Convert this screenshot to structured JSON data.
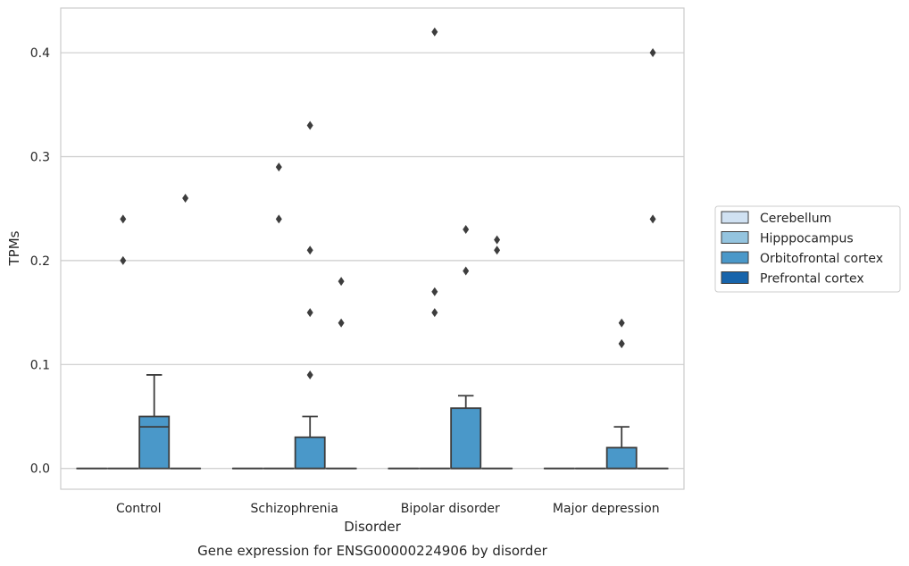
{
  "chart_data": {
    "type": "box",
    "title": "",
    "caption": "Gene expression for ENSG00000224906 by disorder",
    "xlabel": "Disorder",
    "ylabel": "TPMs",
    "categories": [
      "Control",
      "Schizophrenia",
      "Bipolar disorder",
      "Major depression"
    ],
    "ylim": [
      -0.02,
      0.443
    ],
    "yticks": [
      "0.0",
      "0.1",
      "0.2",
      "0.3",
      "0.4"
    ],
    "ytick_values": [
      0.0,
      0.1,
      0.2,
      0.3,
      0.4
    ],
    "grid": "horizontal",
    "legend_position": "right",
    "series": [
      {
        "name": "Cerebellum",
        "color": "#d0e1f2",
        "boxes": [
          {
            "q1": 0,
            "median": 0,
            "q3": 0,
            "whisker_low": 0,
            "whisker_high": 0,
            "outliers": []
          },
          {
            "q1": 0,
            "median": 0,
            "q3": 0,
            "whisker_low": 0,
            "whisker_high": 0,
            "outliers": []
          },
          {
            "q1": 0,
            "median": 0,
            "q3": 0,
            "whisker_low": 0,
            "whisker_high": 0,
            "outliers": []
          },
          {
            "q1": 0,
            "median": 0,
            "q3": 0,
            "whisker_low": 0,
            "whisker_high": 0,
            "outliers": []
          }
        ]
      },
      {
        "name": "Hipppocampus",
        "color": "#94c4df",
        "boxes": [
          {
            "q1": 0,
            "median": 0,
            "q3": 0,
            "whisker_low": 0,
            "whisker_high": 0,
            "outliers": [
              0.2,
              0.24
            ]
          },
          {
            "q1": 0,
            "median": 0,
            "q3": 0,
            "whisker_low": 0,
            "whisker_high": 0,
            "outliers": [
              0.24,
              0.29
            ]
          },
          {
            "q1": 0,
            "median": 0,
            "q3": 0,
            "whisker_low": 0,
            "whisker_high": 0,
            "outliers": [
              0.15,
              0.17,
              0.42
            ]
          },
          {
            "q1": 0,
            "median": 0,
            "q3": 0,
            "whisker_low": 0,
            "whisker_high": 0,
            "outliers": []
          }
        ]
      },
      {
        "name": "Orbitofrontal cortex",
        "color": "#4a98c9",
        "boxes": [
          {
            "q1": 0,
            "median": 0.04,
            "q3": 0.05,
            "whisker_low": 0,
            "whisker_high": 0.09,
            "outliers": []
          },
          {
            "q1": 0,
            "median": 0,
            "q3": 0.03,
            "whisker_low": 0,
            "whisker_high": 0.05,
            "outliers": [
              0.09,
              0.15,
              0.21,
              0.33
            ]
          },
          {
            "q1": 0,
            "median": 0,
            "q3": 0.058,
            "whisker_low": 0,
            "whisker_high": 0.07,
            "outliers": [
              0.19,
              0.23
            ]
          },
          {
            "q1": 0,
            "median": 0,
            "q3": 0.02,
            "whisker_low": 0,
            "whisker_high": 0.04,
            "outliers": [
              0.12,
              0.12,
              0.14
            ]
          }
        ]
      },
      {
        "name": "Prefrontal cortex",
        "color": "#1764ab",
        "boxes": [
          {
            "q1": 0,
            "median": 0,
            "q3": 0,
            "whisker_low": 0,
            "whisker_high": 0,
            "outliers": [
              0.26
            ]
          },
          {
            "q1": 0,
            "median": 0,
            "q3": 0,
            "whisker_low": 0,
            "whisker_high": 0,
            "outliers": [
              0.14,
              0.18
            ]
          },
          {
            "q1": 0,
            "median": 0,
            "q3": 0,
            "whisker_low": 0,
            "whisker_high": 0,
            "outliers": [
              0.21,
              0.22
            ]
          },
          {
            "q1": 0,
            "median": 0,
            "q3": 0,
            "whisker_low": 0,
            "whisker_high": 0,
            "outliers": [
              0.24,
              0.4
            ]
          }
        ]
      }
    ]
  }
}
